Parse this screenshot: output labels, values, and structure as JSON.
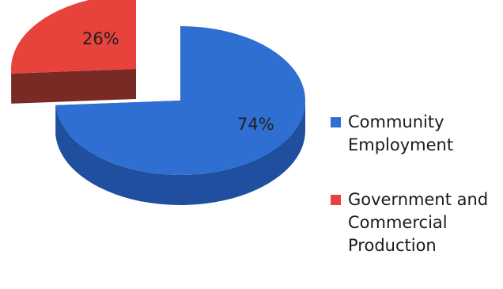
{
  "chart_data": {
    "type": "pie",
    "title": "",
    "style": "3d-exploded",
    "legend_position": "right",
    "categories": [
      "Community Employment",
      "Government and Commercial Production"
    ],
    "values": [
      74,
      26
    ],
    "data_labels": [
      "74%",
      "26%"
    ],
    "colors": [
      "#2F6FD1",
      "#E8423D"
    ],
    "side_colors": [
      "#1F4F9E",
      "#7A2A24"
    ],
    "exploded": [
      false,
      true
    ],
    "start_angle_deg": 270
  },
  "legend": {
    "items": [
      {
        "label": "Community Employment",
        "color": "#2F6FD1"
      },
      {
        "label": "Government and Commercial Production",
        "color": "#E8423D"
      }
    ]
  }
}
